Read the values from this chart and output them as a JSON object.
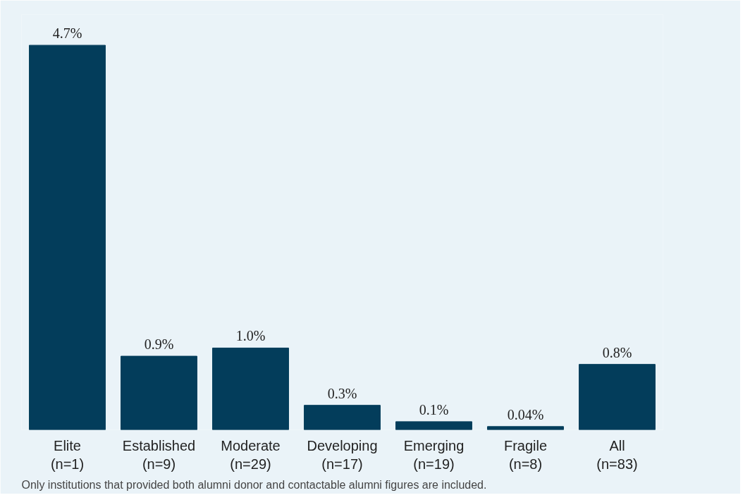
{
  "chart_data": {
    "type": "bar",
    "categories": [
      "Elite\n(n=1)",
      "Established\n(n=9)",
      "Moderate\n(n=29)",
      "Developing\n(n=17)",
      "Emerging\n(n=19)",
      "Fragile\n(n=8)",
      "All\n(n=83)"
    ],
    "values": [
      4.7,
      0.9,
      1.0,
      0.3,
      0.1,
      0.04,
      0.8
    ],
    "value_labels": [
      "4.7%",
      "0.9%",
      "1.0%",
      "0.3%",
      "0.1%",
      "0.04%",
      "0.8%"
    ],
    "color": "#033d5b",
    "grid": false,
    "annotations": [
      "Only institutions that provided both alumni donor and contactable alumni figures are included."
    ]
  }
}
